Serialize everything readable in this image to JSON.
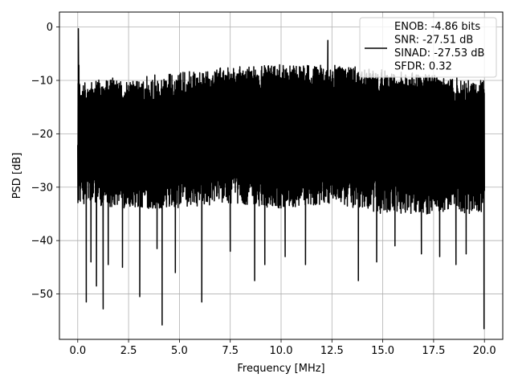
{
  "chart_data": {
    "type": "line",
    "title": "",
    "xlabel": "Frequency [MHz]",
    "ylabel": "PSD [dB]",
    "xlim": [
      -0.9,
      20.9
    ],
    "ylim": [
      -58.5,
      2.8
    ],
    "x_ticks": [
      0.0,
      2.5,
      5.0,
      7.5,
      10.0,
      12.5,
      15.0,
      17.5,
      20.0
    ],
    "x_tick_labels": [
      "0.0",
      "2.5",
      "5.0",
      "7.5",
      "10.0",
      "12.5",
      "15.0",
      "17.5",
      "20.0"
    ],
    "y_ticks": [
      0,
      -10,
      -20,
      -30,
      -40,
      -50
    ],
    "y_tick_labels": [
      "0",
      "−10",
      "−20",
      "−30",
      "−40",
      "−50"
    ],
    "grid": true,
    "legend_position": "top-right",
    "series": [
      {
        "name": "ENOB: -4.86 bits\nSNR: -27.51 dB\nSINAD: -27.53 dB\nSFDR: 0.32",
        "color": "#000000",
        "x_start": 0.0,
        "x_end": 20.0,
        "points": 2048,
        "upper_envelope": {
          "x": [
            0.0,
            0.03,
            0.1,
            0.5,
            1.0,
            2.5,
            5.0,
            7.5,
            10.0,
            12.5,
            15.0,
            17.5,
            20.0
          ],
          "y": [
            -22,
            -0.3,
            -11,
            -10,
            -9.5,
            -9.5,
            -8.5,
            -7.5,
            -7,
            -7,
            -8,
            -9,
            -10
          ]
        },
        "lower_envelope": {
          "x": [
            0.0,
            2.5,
            5.0,
            7.5,
            10.0,
            12.5,
            15.0,
            17.5,
            20.0
          ],
          "y": [
            -33,
            -34,
            -34,
            -33,
            -34,
            -33,
            -35,
            -35,
            -35
          ]
        },
        "notable_points": [
          {
            "x": 0.03,
            "y": -0.3
          },
          {
            "x": 0.42,
            "y": -51.5
          },
          {
            "x": 0.65,
            "y": -44
          },
          {
            "x": 0.92,
            "y": -48.5
          },
          {
            "x": 1.25,
            "y": -52.8
          },
          {
            "x": 1.5,
            "y": -44.5
          },
          {
            "x": 2.2,
            "y": -45
          },
          {
            "x": 3.05,
            "y": -50.5
          },
          {
            "x": 3.9,
            "y": -41.5
          },
          {
            "x": 4.15,
            "y": -55.8
          },
          {
            "x": 4.8,
            "y": -46
          },
          {
            "x": 6.1,
            "y": -51.5
          },
          {
            "x": 7.5,
            "y": -42
          },
          {
            "x": 8.7,
            "y": -47.5
          },
          {
            "x": 9.2,
            "y": -44.5
          },
          {
            "x": 10.2,
            "y": -43
          },
          {
            "x": 11.2,
            "y": -44.5
          },
          {
            "x": 12.3,
            "y": -2.5
          },
          {
            "x": 13.8,
            "y": -47.5
          },
          {
            "x": 14.7,
            "y": -44
          },
          {
            "x": 15.6,
            "y": -41
          },
          {
            "x": 16.9,
            "y": -42.5
          },
          {
            "x": 17.8,
            "y": -43
          },
          {
            "x": 18.6,
            "y": -44.5
          },
          {
            "x": 19.1,
            "y": -42.5
          },
          {
            "x": 19.98,
            "y": -56.5
          }
        ]
      }
    ]
  }
}
